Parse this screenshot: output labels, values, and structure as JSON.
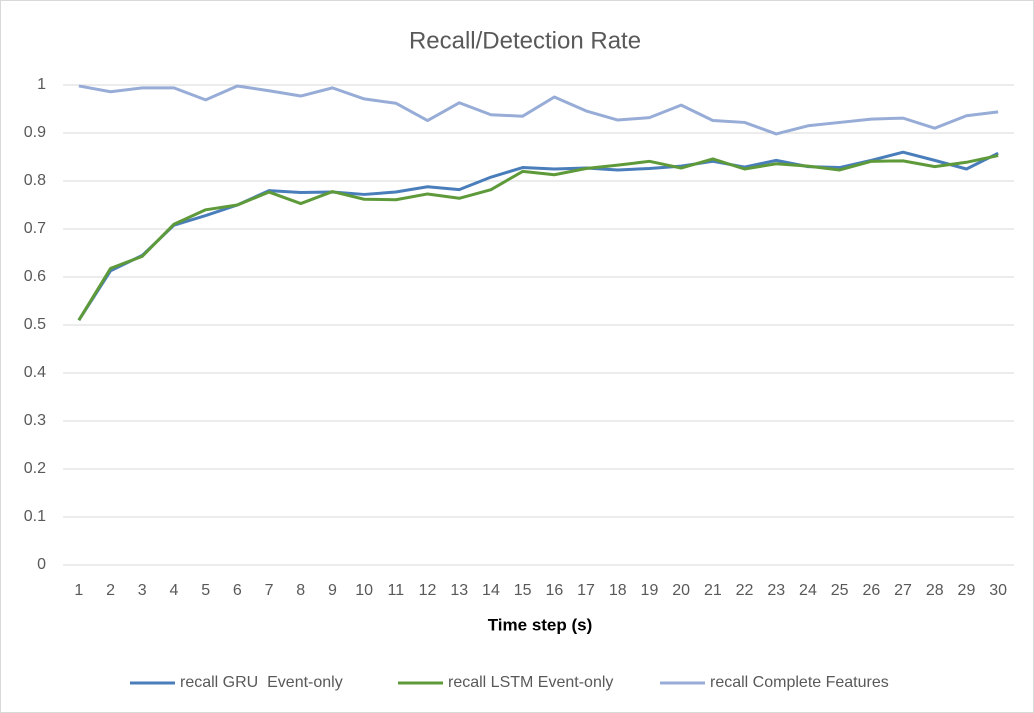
{
  "chart_data": {
    "type": "line",
    "title": "Recall/Detection Rate",
    "x_label": "Time step (s)",
    "categories": [
      "1",
      "2",
      "3",
      "4",
      "5",
      "6",
      "7",
      "8",
      "9",
      "10",
      "11",
      "12",
      "13",
      "14",
      "15",
      "16",
      "17",
      "18",
      "19",
      "20",
      "21",
      "22",
      "23",
      "24",
      "25",
      "26",
      "27",
      "28",
      "29",
      "30"
    ],
    "series": [
      {
        "name": "recall GRU  Event-only",
        "color": "#4a7ebb",
        "values": [
          0.51,
          0.613,
          0.645,
          0.708,
          0.728,
          0.75,
          0.78,
          0.776,
          0.777,
          0.772,
          0.777,
          0.788,
          0.782,
          0.808,
          0.828,
          0.825,
          0.827,
          0.823,
          0.826,
          0.831,
          0.841,
          0.829,
          0.843,
          0.83,
          0.828,
          0.843,
          0.86,
          0.843,
          0.825,
          0.858
        ]
      },
      {
        "name": "recall LSTM Event-only",
        "color": "#5e9a3a",
        "values": [
          0.51,
          0.618,
          0.643,
          0.71,
          0.74,
          0.75,
          0.777,
          0.753,
          0.778,
          0.762,
          0.761,
          0.773,
          0.764,
          0.782,
          0.82,
          0.813,
          0.826,
          0.833,
          0.841,
          0.827,
          0.846,
          0.825,
          0.836,
          0.831,
          0.823,
          0.841,
          0.842,
          0.83,
          0.839,
          0.853
        ]
      },
      {
        "name": "recall Complete Features",
        "color": "#97acd6",
        "values": [
          0.998,
          0.986,
          0.994,
          0.994,
          0.969,
          0.998,
          0.988,
          0.977,
          0.994,
          0.971,
          0.962,
          0.926,
          0.963,
          0.938,
          0.935,
          0.975,
          0.946,
          0.927,
          0.932,
          0.958,
          0.926,
          0.922,
          0.898,
          0.915,
          0.922,
          0.929,
          0.931,
          0.91,
          0.936,
          0.944
        ]
      }
    ],
    "ylim": [
      0,
      1
    ],
    "yticks": [
      0,
      0.1,
      0.2,
      0.3,
      0.4,
      0.5,
      0.6,
      0.7,
      0.8,
      0.9,
      1
    ],
    "grid": true,
    "legend": "bottom"
  }
}
